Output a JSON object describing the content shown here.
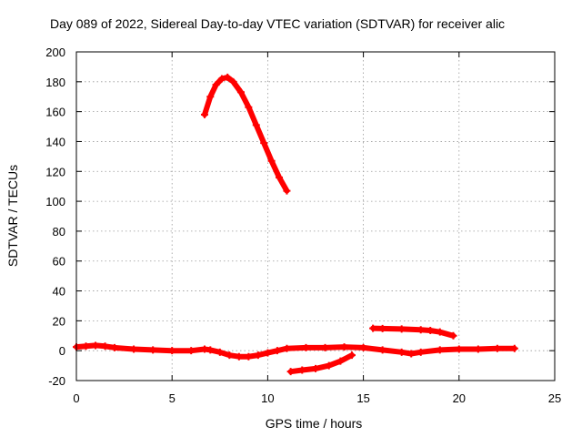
{
  "chart_data": {
    "type": "line",
    "title": "Day 089 of 2022, Sidereal Day-to-day VTEC variation (SDTVAR) for receiver alic",
    "xlabel": "GPS time / hours",
    "ylabel": "SDTVAR / TECUs",
    "xlim": [
      0,
      25
    ],
    "ylim": [
      -20,
      200
    ],
    "xticks": [
      0,
      5,
      10,
      15,
      20,
      25
    ],
    "yticks": [
      -20,
      0,
      20,
      40,
      60,
      80,
      100,
      120,
      140,
      160,
      180,
      200
    ],
    "grid": true,
    "legend": "none",
    "series_color": "#ff0000",
    "series": [
      {
        "x": [
          0.0,
          0.5,
          1.0,
          1.5,
          2.0,
          3.0,
          4.0,
          5.0,
          6.0,
          6.7,
          7.0,
          7.5,
          8.0,
          8.5,
          9.0,
          9.5,
          10.0,
          10.5,
          11.0,
          12.0,
          13.0,
          14.0,
          15.0,
          16.0,
          17.0,
          17.5,
          18.0,
          19.0,
          20.0,
          21.0,
          22.0,
          22.9
        ],
        "y": [
          2.5,
          3.0,
          3.5,
          3.0,
          2.0,
          1.0,
          0.5,
          0.0,
          0.0,
          1.0,
          0.5,
          -1.0,
          -3.0,
          -4.0,
          -4.0,
          -3.0,
          -1.5,
          0.0,
          1.5,
          2.0,
          2.0,
          2.5,
          2.0,
          0.5,
          -1.0,
          -2.0,
          -1.0,
          0.5,
          1.0,
          1.0,
          1.5,
          1.5
        ]
      },
      {
        "x": [
          6.7,
          7.0,
          7.3,
          7.6,
          7.9,
          8.2,
          8.6,
          9.0,
          9.4,
          9.8,
          10.2,
          10.6,
          11.0
        ],
        "y": [
          158,
          170,
          178,
          182,
          183,
          180,
          173,
          163,
          151,
          139,
          127,
          116,
          107
        ]
      },
      {
        "x": [
          11.2,
          11.8,
          12.5,
          13.2,
          13.8,
          14.4
        ],
        "y": [
          -14,
          -13,
          -12,
          -10,
          -7,
          -3
        ]
      },
      {
        "x": [
          15.5,
          16.0,
          17.0,
          18.0,
          18.5,
          19.0,
          19.7
        ],
        "y": [
          15,
          14.8,
          14.5,
          14,
          13.5,
          12.5,
          10
        ]
      }
    ]
  }
}
